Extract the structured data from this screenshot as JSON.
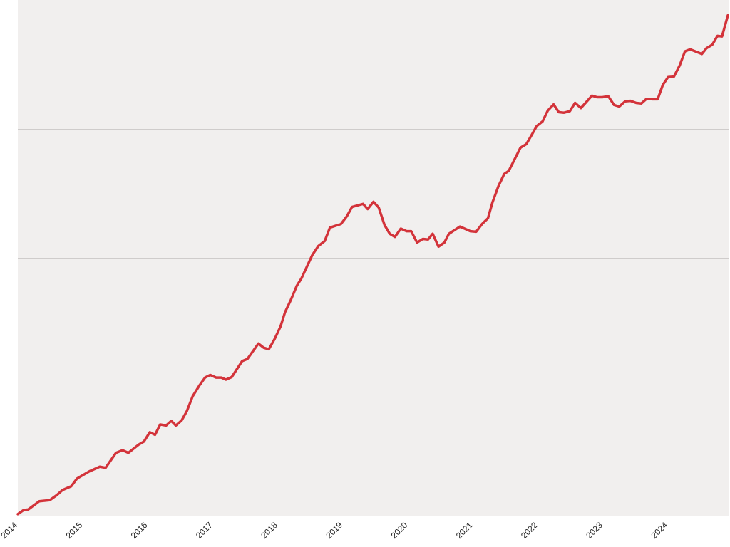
{
  "chart_data": {
    "type": "line",
    "x": [
      2014.0,
      2014.09,
      2014.16,
      2014.33,
      2014.49,
      2014.6,
      2014.69,
      2014.82,
      2014.91,
      2015.1,
      2015.26,
      2015.35,
      2015.51,
      2015.61,
      2015.7,
      2015.86,
      2015.94,
      2016.03,
      2016.11,
      2016.19,
      2016.28,
      2016.36,
      2016.43,
      2016.52,
      2016.6,
      2016.69,
      2016.8,
      2016.88,
      2016.96,
      2017.05,
      2017.13,
      2017.2,
      2017.29,
      2017.45,
      2017.53,
      2017.7,
      2017.78,
      2017.86,
      2017.95,
      2018.04,
      2018.11,
      2018.2,
      2018.29,
      2018.36,
      2018.53,
      2018.62,
      2018.72,
      2018.8,
      2018.97,
      2019.06,
      2019.14,
      2019.31,
      2019.38,
      2019.47,
      2019.55,
      2019.64,
      2019.72,
      2019.8,
      2019.89,
      2019.98,
      2020.05,
      2020.14,
      2020.23,
      2020.31,
      2020.38,
      2020.47,
      2020.56,
      2020.63,
      2020.8,
      2020.96,
      2021.05,
      2021.14,
      2021.23,
      2021.3,
      2021.39,
      2021.48,
      2021.55,
      2021.73,
      2021.82,
      2021.89,
      2021.98,
      2022.07,
      2022.15,
      2022.24,
      2022.32,
      2022.4,
      2022.49,
      2022.57,
      2022.66,
      2022.83,
      2022.91,
      2022.99,
      2023.08,
      2023.17,
      2023.25,
      2023.34,
      2023.42,
      2023.51,
      2023.59,
      2023.67,
      2023.76,
      2023.84,
      2023.92,
      2024.0,
      2024.09,
      2024.18,
      2024.26,
      2024.34,
      2024.52,
      2024.59,
      2024.68,
      2024.76,
      2024.83,
      2024.92
    ],
    "series": [
      {
        "color": "#d3333a",
        "values": [
          0.3,
          1.1,
          1.2,
          2.8,
          3.0,
          4.0,
          5.0,
          5.7,
          7.2,
          8.6,
          9.5,
          9.3,
          12.2,
          12.7,
          12.2,
          13.8,
          14.4,
          16.2,
          15.7,
          17.7,
          17.5,
          18.4,
          17.5,
          18.5,
          20.3,
          23.2,
          25.4,
          26.8,
          27.3,
          26.8,
          26.8,
          26.4,
          26.9,
          30.0,
          30.4,
          33.4,
          32.6,
          32.3,
          34.3,
          36.7,
          39.5,
          41.9,
          44.6,
          46.0,
          50.6,
          52.3,
          53.3,
          55.9,
          56.6,
          58.1,
          59.9,
          60.5,
          59.5,
          60.9,
          59.8,
          56.4,
          54.7,
          54.1,
          55.7,
          55.2,
          55.2,
          53.0,
          53.7,
          53.6,
          54.7,
          52.2,
          53.0,
          54.7,
          56.1,
          55.2,
          55.1,
          56.6,
          57.7,
          60.8,
          63.9,
          66.3,
          66.9,
          71.4,
          72.1,
          73.6,
          75.6,
          76.5,
          78.6,
          79.8,
          78.3,
          78.2,
          78.5,
          80.1,
          79.1,
          81.5,
          81.2,
          81.2,
          81.4,
          79.7,
          79.4,
          80.4,
          80.5,
          80.1,
          80.0,
          80.9,
          80.8,
          80.8,
          83.6,
          85.1,
          85.2,
          87.4,
          90.1,
          90.5,
          89.6,
          90.7,
          91.4,
          93.1,
          93.0,
          97.1
        ]
      }
    ],
    "xlim": [
      2014,
      2024.92
    ],
    "xticks": [
      2014,
      2015,
      2016,
      2017,
      2018,
      2019,
      2020,
      2021,
      2022,
      2023,
      2024
    ],
    "ylim": [
      0,
      100
    ],
    "ygrid": [
      0,
      25,
      50,
      75,
      100
    ],
    "background": "#f1efee"
  }
}
